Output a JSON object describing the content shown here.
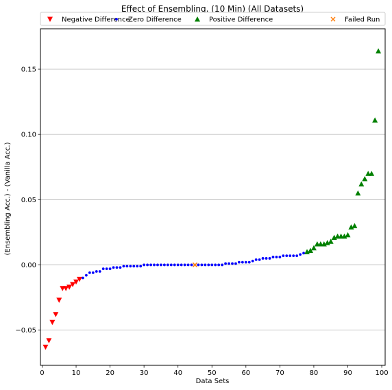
{
  "chart_data": {
    "type": "scatter",
    "title": "Effect of Ensembling. (10 Min) (All Datasets)",
    "xlabel": "Data Sets",
    "ylabel": "(Ensembling Acc.) - (Vanilla Acc.)",
    "xlim": [
      -0.5,
      101
    ],
    "ylim": [
      -0.077,
      0.181
    ],
    "xticks": [
      0,
      10,
      20,
      30,
      40,
      50,
      60,
      70,
      80,
      90,
      100
    ],
    "yticks": [
      -0.05,
      0.0,
      0.05,
      0.1,
      0.15
    ],
    "ytick_labels": [
      "−0.05",
      "0.00",
      "0.05",
      "0.10",
      "0.15"
    ],
    "grid": "y-major",
    "legend": {
      "placement": "top",
      "ncol": 4
    },
    "series": [
      {
        "name": "Negative Difference",
        "marker": "triangle-down",
        "color": "#ff0000",
        "x": [
          1,
          2,
          3,
          4,
          5,
          6,
          7,
          8,
          9,
          10,
          11
        ],
        "y": [
          -0.063,
          -0.058,
          -0.044,
          -0.038,
          -0.027,
          -0.018,
          -0.018,
          -0.017,
          -0.015,
          -0.013,
          -0.011
        ]
      },
      {
        "name": "Zero Difference",
        "marker": "circle",
        "color": "#0000ff",
        "x": [
          12,
          13,
          14,
          15,
          16,
          17,
          18,
          19,
          20,
          21,
          22,
          23,
          24,
          25,
          26,
          27,
          28,
          29,
          30,
          31,
          32,
          33,
          34,
          35,
          36,
          37,
          38,
          39,
          40,
          41,
          42,
          43,
          44,
          46,
          47,
          48,
          49,
          50,
          51,
          52,
          53,
          54,
          55,
          56,
          57,
          58,
          59,
          60,
          61,
          62,
          63,
          64,
          65,
          66,
          67,
          68,
          69,
          70,
          71,
          72,
          73,
          74,
          75,
          76,
          77
        ],
        "y": [
          -0.01,
          -0.008,
          -0.006,
          -0.006,
          -0.005,
          -0.005,
          -0.003,
          -0.003,
          -0.003,
          -0.002,
          -0.002,
          -0.002,
          -0.001,
          -0.001,
          -0.001,
          -0.001,
          -0.001,
          -0.001,
          0.0,
          0.0,
          0.0,
          0.0,
          0.0,
          0.0,
          0.0,
          0.0,
          0.0,
          0.0,
          0.0,
          0.0,
          0.0,
          0.0,
          0.0,
          0.0,
          0.0,
          0.0,
          0.0,
          0.0,
          0.0,
          0.0,
          0.0,
          0.001,
          0.001,
          0.001,
          0.001,
          0.002,
          0.002,
          0.002,
          0.002,
          0.003,
          0.004,
          0.004,
          0.005,
          0.005,
          0.005,
          0.006,
          0.006,
          0.006,
          0.007,
          0.007,
          0.007,
          0.007,
          0.007,
          0.008,
          0.009
        ]
      },
      {
        "name": "Positive Difference",
        "marker": "triangle-up",
        "color": "#008000",
        "x": [
          78,
          79,
          80,
          81,
          82,
          83,
          84,
          85,
          86,
          87,
          88,
          89,
          90,
          91,
          92,
          93,
          94,
          95,
          96,
          97,
          98,
          99
        ],
        "y": [
          0.01,
          0.011,
          0.013,
          0.016,
          0.016,
          0.016,
          0.017,
          0.018,
          0.021,
          0.022,
          0.022,
          0.022,
          0.023,
          0.029,
          0.03,
          0.055,
          0.062,
          0.066,
          0.07,
          0.07,
          0.111,
          0.164
        ]
      },
      {
        "name": "Failed Run",
        "marker": "x",
        "color": "#ff7f0e",
        "x": [
          45
        ],
        "y": [
          0.0
        ]
      }
    ]
  }
}
